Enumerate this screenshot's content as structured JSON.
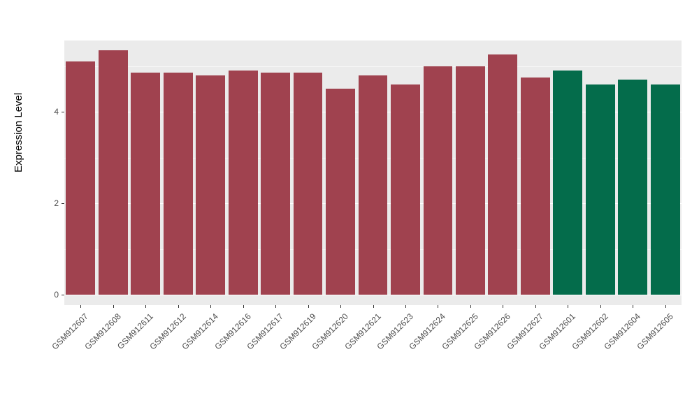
{
  "chart_data": {
    "type": "bar",
    "title": "",
    "xlabel": "",
    "ylabel": "Expression Level",
    "ylim": [
      0,
      5.56
    ],
    "yticks": [
      0,
      2,
      4
    ],
    "minor_ticks": [
      1,
      3,
      5
    ],
    "grid": "on",
    "legend": "none",
    "panel_background": "#EBEBEB",
    "categories": [
      "GSM912607",
      "GSM912608",
      "GSM912611",
      "GSM912612",
      "GSM912614",
      "GSM912616",
      "GSM912617",
      "GSM912619",
      "GSM912620",
      "GSM912621",
      "GSM912623",
      "GSM912624",
      "GSM912625",
      "GSM912626",
      "GSM912627",
      "GSM912601",
      "GSM912602",
      "GSM912604",
      "GSM912605"
    ],
    "values": [
      5.1,
      5.35,
      4.85,
      4.85,
      4.8,
      4.9,
      4.85,
      4.85,
      4.5,
      4.8,
      4.6,
      5.0,
      5.0,
      5.25,
      4.75,
      4.9,
      4.6,
      4.7,
      4.6
    ],
    "groups": [
      "red",
      "red",
      "red",
      "red",
      "red",
      "red",
      "red",
      "red",
      "red",
      "red",
      "red",
      "red",
      "red",
      "red",
      "red",
      "green",
      "green",
      "green",
      "green"
    ],
    "group_colors": {
      "red": "#A0424F",
      "green": "#046C4B"
    }
  }
}
